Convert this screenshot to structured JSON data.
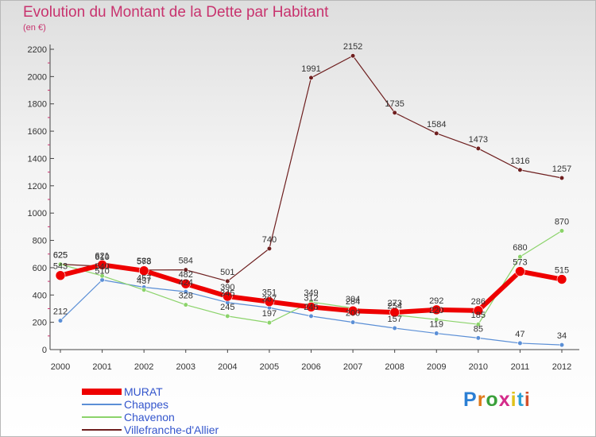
{
  "title": "Evolution du Montant de la Dette par Habitant",
  "subtitle": "(en €)",
  "logo": "Proxiti",
  "chart_data": {
    "type": "line",
    "title": "Evolution du Montant de la Dette par Habitant",
    "subtitle": "(en €)",
    "categories": [
      "2000",
      "2001",
      "2002",
      "2003",
      "2004",
      "2005",
      "2006",
      "2007",
      "2008",
      "2009",
      "2010",
      "2011",
      "2012"
    ],
    "ylim": [
      0,
      2200
    ],
    "yticks": [
      0,
      200,
      400,
      600,
      800,
      1000,
      1200,
      1400,
      1600,
      1800,
      2000,
      2200
    ],
    "grid": false,
    "legend": "bottom-left",
    "series": [
      {
        "name": "Villefranche-d'Allier",
        "color": "#6e1f1f",
        "width": 1.2,
        "marker": 2.8,
        "values": [
          625,
          610,
          583,
          584,
          501,
          740,
          1991,
          2152,
          1735,
          1584,
          1473,
          1316,
          1257
        ]
      },
      {
        "name": "Chappes",
        "color": "#5b8fd6",
        "width": 1.2,
        "marker": 2.8,
        "values": [
          212,
          510,
          457,
          424,
          345,
          307,
          245,
          200,
          157,
          119,
          85,
          47,
          34
        ]
      },
      {
        "name": "Chavenon",
        "color": "#8bd36a",
        "width": 1.2,
        "marker": 2.8,
        "values": [
          625,
          540,
          437,
          328,
          245,
          197,
          349,
          304,
          254,
          220,
          185,
          680,
          870
        ]
      },
      {
        "name": "MURAT",
        "color": "#ee0000",
        "width": 6,
        "marker": 6,
        "values": [
          543,
          621,
          578,
          482,
          390,
          351,
          312,
          284,
          273,
          292,
          286,
          573,
          515
        ]
      }
    ],
    "data_labels": [
      [
        "625",
        "610",
        "583",
        "584",
        "501",
        "740",
        "1991",
        "2152",
        "1735",
        "1584",
        "1473",
        "1316",
        "1257"
      ],
      [
        "212",
        "510",
        "457",
        "424",
        "345",
        "307",
        "245",
        "200",
        "157",
        "119",
        "85",
        "47",
        "34"
      ],
      [
        "625",
        "540",
        "437",
        "328",
        "245",
        "197",
        "349",
        "304",
        "254",
        "220",
        "185",
        "680",
        "870"
      ],
      [
        "543",
        "621",
        "578",
        "482",
        "390",
        "351",
        "312",
        "284",
        "273",
        "292",
        "286",
        "573",
        "515"
      ]
    ]
  },
  "legend_order": [
    3,
    1,
    2,
    0
  ]
}
